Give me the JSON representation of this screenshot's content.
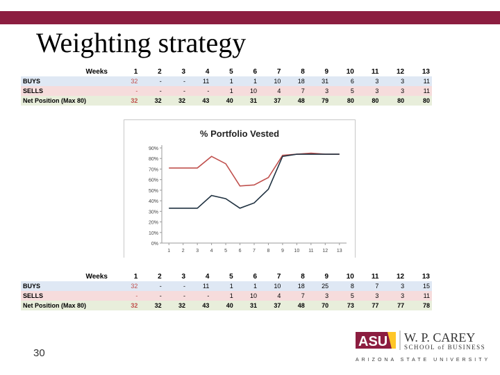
{
  "slide": {
    "title": "Weighting strategy",
    "page_number": "30"
  },
  "table1": {
    "header_label": "Weeks",
    "weeks": [
      "1",
      "2",
      "3",
      "4",
      "5",
      "6",
      "7",
      "8",
      "9",
      "10",
      "11",
      "12",
      "13"
    ],
    "rows": [
      {
        "label": "BUYS",
        "values": [
          "32",
          "-",
          "-",
          "11",
          "1",
          "1",
          "10",
          "18",
          "31",
          "6",
          "3",
          "3",
          "11"
        ]
      },
      {
        "label": "SELLS",
        "values": [
          "-",
          "-",
          "-",
          "-",
          "1",
          "10",
          "4",
          "7",
          "3",
          "5",
          "3",
          "3",
          "11"
        ]
      },
      {
        "label": "Net Position (Max 80)",
        "values": [
          "32",
          "32",
          "32",
          "43",
          "40",
          "31",
          "37",
          "48",
          "79",
          "80",
          "80",
          "80",
          "80"
        ]
      }
    ]
  },
  "table2": {
    "header_label": "Weeks",
    "weeks": [
      "1",
      "2",
      "3",
      "4",
      "5",
      "6",
      "7",
      "8",
      "9",
      "10",
      "11",
      "12",
      "13"
    ],
    "rows": [
      {
        "label": "BUYS",
        "values": [
          "32",
          "-",
          "-",
          "11",
          "1",
          "1",
          "10",
          "18",
          "25",
          "8",
          "7",
          "3",
          "15"
        ]
      },
      {
        "label": "SELLS",
        "values": [
          "-",
          "-",
          "-",
          "-",
          "1",
          "10",
          "4",
          "7",
          "3",
          "5",
          "3",
          "3",
          "11"
        ]
      },
      {
        "label": "Net Position (Max 80)",
        "values": [
          "32",
          "32",
          "32",
          "43",
          "40",
          "31",
          "37",
          "48",
          "70",
          "73",
          "77",
          "77",
          "78"
        ]
      }
    ]
  },
  "chart_data": {
    "type": "line",
    "title": "% Portfolio Vested",
    "x": [
      1,
      2,
      3,
      4,
      5,
      6,
      7,
      8,
      9,
      10,
      11,
      12,
      13
    ],
    "x_tick_labels": [
      "1",
      "2",
      "3",
      "4",
      "5",
      "6",
      "7",
      "8",
      "9",
      "10",
      "11",
      "12",
      "13"
    ],
    "y_tick_labels": [
      "0%",
      "10%",
      "20%",
      "30%",
      "40%",
      "50%",
      "60%",
      "70%",
      "80%",
      "90%"
    ],
    "ylim": [
      0,
      0.9
    ],
    "grid": false,
    "series": [
      {
        "color": "#c0504d",
        "values": [
          0.71,
          0.71,
          0.71,
          0.82,
          0.75,
          0.54,
          0.55,
          0.62,
          0.83,
          0.84,
          0.85,
          0.84,
          0.84
        ]
      },
      {
        "color": "#1f3140",
        "values": [
          0.33,
          0.33,
          0.33,
          0.45,
          0.42,
          0.33,
          0.38,
          0.51,
          0.82,
          0.84,
          0.84,
          0.84,
          0.84
        ]
      }
    ]
  },
  "logo": {
    "mark": "ASU",
    "line1": "W. P. CAREY",
    "line2": "SCHOOL of BUSINESS",
    "line3": "ARIZONA STATE UNIVERSITY"
  },
  "colors": {
    "band": "#8c1d40",
    "logo_maroon": "#8c1d40",
    "logo_gold": "#ffc627"
  }
}
